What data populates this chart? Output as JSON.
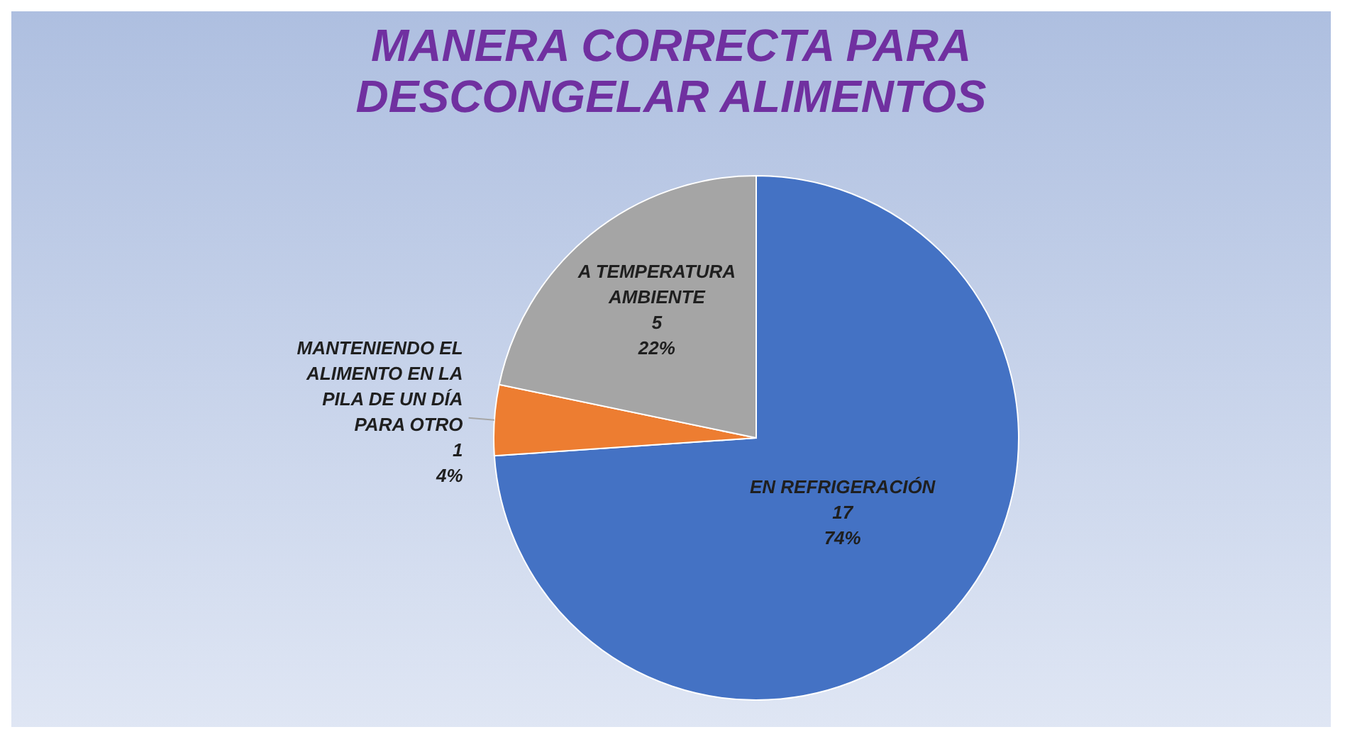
{
  "chart_data": {
    "type": "pie",
    "title": "MANERA CORRECTA PARA DESCONGELAR ALIMENTOS",
    "categories": [
      "EN REFRIGERACIÓN",
      "MANTENIENDO EL ALIMENTO EN LA PILA DE UN DÍA PARA OTRO",
      "A TEMPERATURA AMBIENTE"
    ],
    "values": [
      17,
      1,
      5
    ],
    "colors": [
      "#4472c4",
      "#ed7d31",
      "#a5a5a5"
    ],
    "value_labels": [
      "17\n74%",
      "1\n4%",
      "5\n22%"
    ]
  }
}
